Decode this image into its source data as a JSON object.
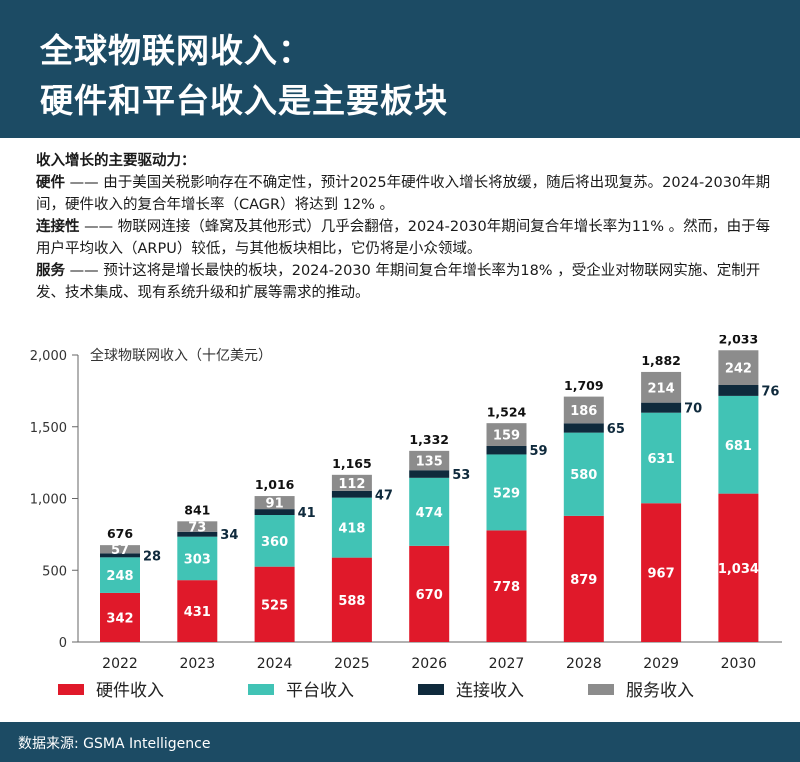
{
  "header": {
    "title_line1": "全球物联网收入：",
    "title_line2": "硬件和平台收入是主要板块"
  },
  "drivers": {
    "heading": "收入增长的主要驱动力：",
    "items": [
      {
        "name": "硬件",
        "text": " —— 由于美国关税影响存在不确定性，预计2025年硬件收入增长将放缓，随后将出现复苏。2024-2030年期间，硬件收入的复合年增长率（CAGR）将达到 12% 。"
      },
      {
        "name": "连接性",
        "text": " —— 物联网连接（蜂窝及其他形式）几乎会翻倍，2024-2030年期间复合年增长率为11% 。然而，由于每用户平均收入（ARPU）较低，与其他板块相比，它仍将是小众领域。"
      },
      {
        "name": "服务",
        "text": " —— 预计这将是增长最快的板块，2024-2030 年期间复合年增长率为18% ，受企业对物联网实施、定制开发、技术集成、现有系统升级和扩展等需求的推动。"
      }
    ]
  },
  "footer": {
    "source": "数据来源: GSMA Intelligence"
  },
  "chart_data": {
    "type": "bar",
    "stacked": true,
    "title": "",
    "subtitle": "全球物联网收入（十亿美元）",
    "xlabel": "",
    "ylabel": "",
    "ylim": [
      0,
      2000
    ],
    "yticks": [
      0,
      500,
      1000,
      1500,
      2000
    ],
    "ytick_labels": [
      "0",
      "500",
      "1,000",
      "1,500",
      "2,000"
    ],
    "grid": false,
    "legend_position": "bottom",
    "categories": [
      "2022",
      "2023",
      "2024",
      "2025",
      "2026",
      "2027",
      "2028",
      "2029",
      "2030"
    ],
    "totals": [
      676,
      841,
      1016,
      1165,
      1332,
      1524,
      1709,
      1882,
      2033
    ],
    "total_labels": [
      "676",
      "841",
      "1,016",
      "1,165",
      "1,332",
      "1,524",
      "1,709",
      "1,882",
      "2,033"
    ],
    "series": [
      {
        "name": "硬件收入",
        "color": "#e0192a",
        "values": [
          342,
          431,
          525,
          588,
          670,
          778,
          879,
          967,
          1034
        ],
        "labels": [
          "342",
          "431",
          "525",
          "588",
          "670",
          "778",
          "879",
          "967",
          "1,034"
        ]
      },
      {
        "name": "平台收入",
        "color": "#41c3b5",
        "values": [
          248,
          303,
          360,
          418,
          474,
          529,
          580,
          631,
          681
        ],
        "labels": [
          "248",
          "303",
          "360",
          "418",
          "474",
          "529",
          "580",
          "631",
          "681"
        ]
      },
      {
        "name": "连接收入",
        "color": "#0f2a3c",
        "values": [
          28,
          34,
          41,
          47,
          53,
          59,
          65,
          70,
          76
        ],
        "labels": [
          "28",
          "34",
          "41",
          "47",
          "53",
          "59",
          "65",
          "70",
          "76"
        ]
      },
      {
        "name": "服务收入",
        "color": "#8c8c8c",
        "values": [
          57,
          73,
          91,
          112,
          135,
          159,
          186,
          214,
          242
        ],
        "labels": [
          "57",
          "73",
          "91",
          "112",
          "135",
          "159",
          "186",
          "214",
          "242"
        ]
      }
    ]
  }
}
